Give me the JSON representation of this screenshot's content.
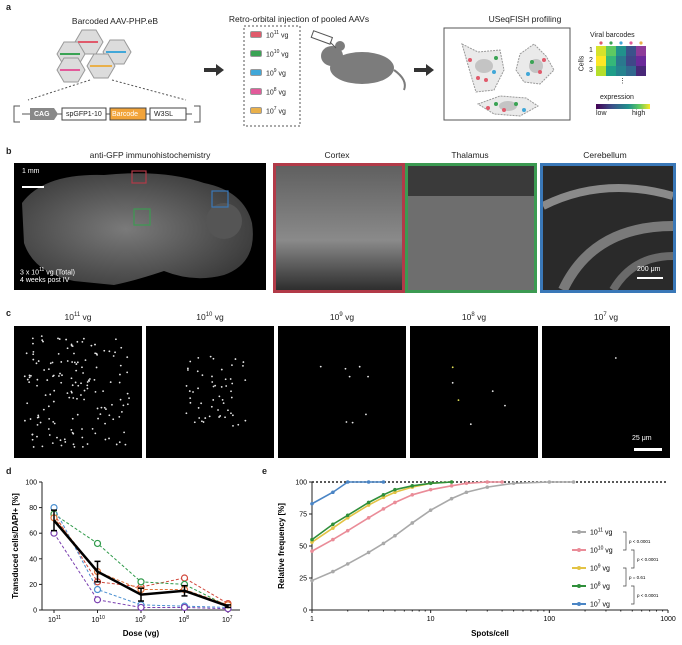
{
  "panel_a": {
    "label": "a",
    "title_aav": "Barcoded AAV-PHP.eB",
    "title_injection": "Retro-orbital injection of pooled AAVs",
    "title_profiling": "USeqFISH profiling",
    "construct": [
      "CAG",
      "spGFP1-10",
      "Barcode",
      "W3SL"
    ],
    "doses": [
      {
        "label": "10",
        "exp": "11",
        "unit": " vg",
        "color": "#e05a6b"
      },
      {
        "label": "10",
        "exp": "10",
        "unit": " vg",
        "color": "#3aa354"
      },
      {
        "label": "10",
        "exp": "9",
        "unit": " vg",
        "color": "#41a7d8"
      },
      {
        "label": "10",
        "exp": "8",
        "unit": " vg",
        "color": "#e25a9a"
      },
      {
        "label": "10",
        "exp": "7",
        "unit": " vg",
        "color": "#e9b04b"
      }
    ],
    "viral_barcodes": "Viral barcodes",
    "cells_label": "Cells",
    "cell_rows": [
      "1",
      "2",
      "3"
    ],
    "dots": "⋮",
    "expression": "expression",
    "low": "low",
    "high": "high"
  },
  "panel_b": {
    "label": "b",
    "title_ihc": "anti-GFP immunohistochemistry",
    "scale_1mm": "1 mm",
    "note_1": "3 x 10",
    "note_1_exp": "11",
    "note_1_end": " vg (Total)",
    "note_2": "4 weeks post IV",
    "regions": [
      {
        "name": "Cortex",
        "color": "#b23a48"
      },
      {
        "name": "Thalamus",
        "color": "#3c9a52"
      },
      {
        "name": "Cerebellum",
        "color": "#3a78b8"
      }
    ],
    "scale_200": "200 μm"
  },
  "panel_c": {
    "label": "c",
    "titles": [
      {
        "base": "10",
        "exp": "11",
        "unit": " vg"
      },
      {
        "base": "10",
        "exp": "10",
        "unit": " vg"
      },
      {
        "base": "10",
        "exp": "9",
        "unit": " vg"
      },
      {
        "base": "10",
        "exp": "8",
        "unit": " vg"
      },
      {
        "base": "10",
        "exp": "7",
        "unit": " vg"
      }
    ],
    "scale_25": "25 μm"
  },
  "chart_data": [
    {
      "panel": "d",
      "type": "line",
      "xlabel": "Dose (vg)",
      "ylabel": "Transduced cells/DAPI+ [%]",
      "categories": [
        "10^11",
        "10^10",
        "10^9",
        "10^8",
        "10^7"
      ],
      "ylim": [
        0,
        100
      ],
      "yticks": [
        0,
        20,
        40,
        60,
        80,
        100
      ],
      "series": [
        {
          "color": "#d1473a",
          "values": [
            75,
            22,
            18,
            25,
            5
          ]
        },
        {
          "color": "#2f9a4a",
          "values": [
            75,
            52,
            22,
            20,
            3
          ]
        },
        {
          "color": "#4a8fd0",
          "values": [
            80,
            16,
            4,
            3,
            2
          ]
        },
        {
          "color": "#7a3fb0",
          "values": [
            60,
            8,
            2,
            2,
            1
          ]
        },
        {
          "color": "#e0743a",
          "values": [
            72,
            30,
            16,
            16,
            4
          ]
        }
      ],
      "mean": {
        "values": [
          70,
          30,
          12,
          15,
          3
        ],
        "err": [
          8,
          8,
          5,
          4,
          1
        ],
        "color": "#000000"
      }
    },
    {
      "panel": "e",
      "type": "line",
      "xscale": "log",
      "xlabel": "Spots/cell",
      "ylabel": "Relative frequency [%]",
      "xlim": [
        1,
        1000
      ],
      "xticks": [
        1,
        10,
        100,
        1000
      ],
      "ylim": [
        0,
        100
      ],
      "yticks": [
        0,
        25,
        50,
        75,
        100
      ],
      "series": [
        {
          "name": "10",
          "exp": "11",
          "unit": " vg",
          "color": "#a9a9a9",
          "x": [
            1,
            1.5,
            2,
            3,
            4,
            5,
            7,
            10,
            15,
            20,
            30,
            50,
            100,
            160
          ],
          "values": [
            23,
            30,
            36,
            45,
            52,
            58,
            68,
            78,
            87,
            92,
            96,
            99,
            100,
            100
          ]
        },
        {
          "name": "10",
          "exp": "10",
          "unit": " vg",
          "color": "#ea8c98",
          "x": [
            1,
            1.5,
            2,
            3,
            4,
            5,
            7,
            10,
            15,
            20,
            30,
            40
          ],
          "values": [
            46,
            55,
            62,
            72,
            79,
            84,
            90,
            94,
            97,
            99,
            100,
            100
          ]
        },
        {
          "name": "10",
          "exp": "9",
          "unit": " vg",
          "color": "#e3c345",
          "x": [
            1,
            1.5,
            2,
            3,
            4,
            5,
            7,
            10,
            15
          ],
          "values": [
            53,
            64,
            72,
            82,
            88,
            92,
            96,
            99,
            100
          ]
        },
        {
          "name": "10",
          "exp": "8",
          "unit": " vg",
          "color": "#2f8f3a",
          "x": [
            1,
            1.5,
            2,
            3,
            4,
            5,
            7,
            10,
            15
          ],
          "values": [
            55,
            67,
            74,
            84,
            90,
            94,
            97,
            99,
            100
          ]
        },
        {
          "name": "10",
          "exp": "7",
          "unit": " vg",
          "color": "#4a85c5",
          "x": [
            1,
            1.5,
            2,
            3,
            4
          ],
          "values": [
            83,
            92,
            100,
            100,
            100
          ]
        }
      ],
      "pvalues": [
        "p < 0.0001",
        "p < 0.0001",
        "p = 0.61",
        "p < 0.0001"
      ]
    }
  ]
}
